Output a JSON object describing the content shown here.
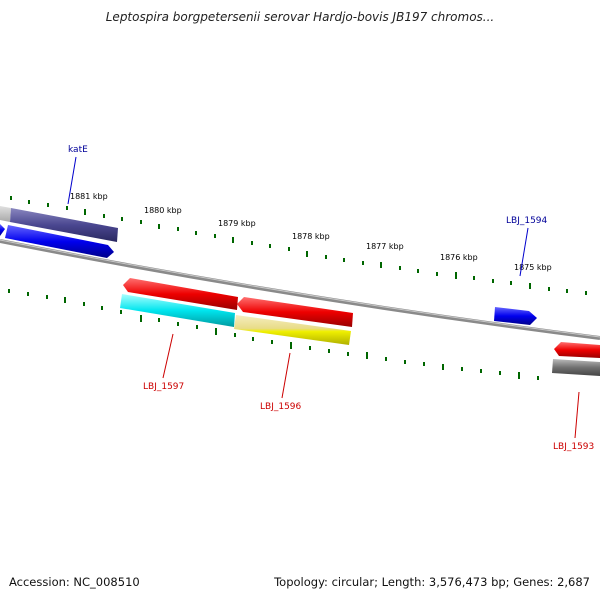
{
  "title": "Leptospira borgpetersenii serovar Hardjo-bovis JB197 chromos...",
  "accession": "Accession: NC_008510",
  "summary": "Topology: circular; Length: 3,576,473 bp; Genes: 2,687",
  "ticks": [
    "1881 kbp",
    "1880 kbp",
    "1879 kbp",
    "1878 kbp",
    "1877 kbp",
    "1876 kbp",
    "1875 kbp"
  ],
  "gene_labels": [
    "katE",
    "LBJ_1594",
    "LBJ_1597",
    "LBJ_1596",
    "LBJ_1593"
  ],
  "colors": {
    "backbone": "#808080",
    "forward_cds": "#0000ee",
    "forward_label": "#000099",
    "reverse_cds": "#ee0000",
    "reverse_label": "#cc0000",
    "tick_mark": "#006600",
    "track_gray": "#707070",
    "track_purple": "#4a4790",
    "track_cyan": "#00e5ee",
    "track_yellow": "#eeee00"
  }
}
